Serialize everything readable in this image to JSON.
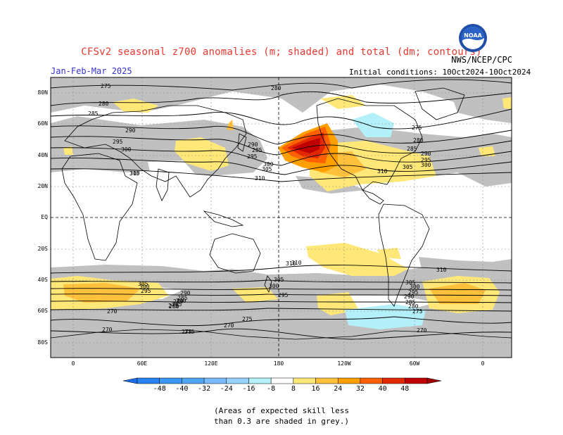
{
  "title": "CFSv2 seasonal z700 anomalies (m; shaded) and total (dm; contours)",
  "agency": "NWS/NCEP/CPC",
  "season": "Jan-Feb-Mar 2025",
  "initial_conditions": "Initial conditions: 10Oct2024-10Oct2024",
  "logo_text": "NOAA",
  "lat_labels": [
    "80N",
    "60N",
    "40N",
    "20N",
    "EQ",
    "20S",
    "40S",
    "60S",
    "80S"
  ],
  "lon_labels": [
    "0",
    "60E",
    "120E",
    "180",
    "120W",
    "60W",
    "0"
  ],
  "colorbar": {
    "values": [
      "-48",
      "-40",
      "-32",
      "-24",
      "-16",
      "-8",
      "8",
      "16",
      "24",
      "32",
      "40",
      "48"
    ],
    "colors": [
      "#1e6eeb",
      "#2882f0",
      "#3c96f5",
      "#50a5f5",
      "#78b9fa",
      "#96d2fa",
      "#b4f0fa",
      "#ffffff",
      "#ffe878",
      "#ffc03c",
      "#ffa000",
      "#ff6000",
      "#e12800",
      "#c00000",
      "#a00000"
    ]
  },
  "contour_labels": [
    "275",
    "280",
    "285",
    "290",
    "295",
    "300",
    "305",
    "310",
    "280",
    "285",
    "290",
    "295",
    "300",
    "305",
    "310",
    "275",
    "280",
    "285",
    "290",
    "295",
    "300",
    "305",
    "310",
    "310",
    "305",
    "300",
    "295",
    "290",
    "285",
    "280",
    "275",
    "270",
    "275",
    "270",
    "270",
    "275",
    "270",
    "275",
    "280",
    "285",
    "290",
    "295",
    "300",
    "305",
    "310",
    "310",
    "305",
    "300",
    "295",
    "290",
    "285",
    "280",
    "275"
  ],
  "note_line1": "(Areas of expected skill less",
  "note_line2": "than 0.3 are shaded in grey.)"
}
